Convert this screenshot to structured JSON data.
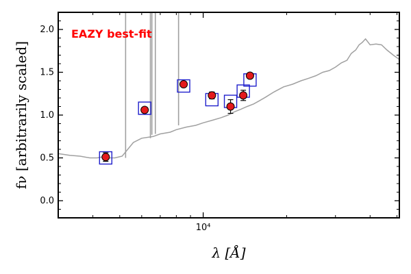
{
  "chart_data": {
    "type": "scatter",
    "title": "",
    "xlabel": "λ [Å]",
    "ylabel": "fν [arbitrarily scaled]",
    "xscale": "log",
    "xlim": [
      3000,
      51000
    ],
    "ylim": [
      -0.2,
      2.2
    ],
    "yticks": [
      0.0,
      0.5,
      1.0,
      1.5,
      2.0
    ],
    "ytick_labels": [
      "0.0",
      "0.5",
      "1.0",
      "1.5",
      "2.0"
    ],
    "xticks": [
      10000
    ],
    "xtick_labels": [
      "10⁴"
    ],
    "grid": false,
    "annotation": {
      "text": "EAZY best-fit",
      "color": "#ff0000"
    },
    "colors": {
      "template": "#a0a0a0",
      "model_box": "#1f1fcc",
      "observed_point": "#e31a1c",
      "errorbar": "#000000"
    },
    "series": [
      {
        "role": "template",
        "x": [
          3000,
          3300,
          3600,
          3900,
          4150,
          4300,
          4600,
          4800,
          5100,
          5600,
          6000,
          6600,
          7000,
          7600,
          8000,
          8700,
          9400,
          10000,
          10800,
          11600,
          12300,
          13000,
          13700,
          14400,
          15200,
          16000,
          16800,
          18000,
          19500,
          21000,
          22500,
          24000,
          25500,
          27000,
          28500,
          30000,
          31500,
          33000,
          34200,
          35500,
          36500,
          37500,
          38500,
          40000,
          42000,
          44000,
          46000,
          48500,
          51000
        ],
        "y": [
          0.55,
          0.53,
          0.52,
          0.5,
          0.5,
          0.51,
          0.5,
          0.5,
          0.52,
          0.68,
          0.73,
          0.75,
          0.78,
          0.8,
          0.83,
          0.86,
          0.88,
          0.91,
          0.94,
          0.97,
          1.0,
          1.04,
          1.07,
          1.1,
          1.13,
          1.17,
          1.21,
          1.27,
          1.33,
          1.36,
          1.4,
          1.43,
          1.46,
          1.5,
          1.52,
          1.56,
          1.61,
          1.64,
          1.72,
          1.76,
          1.82,
          1.85,
          1.89,
          1.82,
          1.83,
          1.82,
          1.76,
          1.7,
          1.65
        ]
      },
      {
        "role": "template-lines",
        "x": [
          5250,
          6450,
          6530,
          6720,
          8150
        ],
        "y": [
          2.2,
          2.2,
          2.2,
          2.2,
          2.2
        ],
        "base": [
          0.5,
          0.73,
          0.77,
          0.78,
          0.88
        ]
      },
      {
        "role": "model",
        "x": [
          4450,
          6150,
          8500,
          10750,
          12550,
          13950,
          14750
        ],
        "y": [
          0.5,
          1.08,
          1.34,
          1.18,
          1.16,
          1.28,
          1.41
        ]
      },
      {
        "role": "observed",
        "x": [
          4450,
          6150,
          8500,
          10750,
          12550,
          13950,
          14750
        ],
        "y": [
          0.51,
          1.06,
          1.36,
          1.23,
          1.1,
          1.23,
          1.46
        ],
        "yerr": [
          0.05,
          0.03,
          0.03,
          0.04,
          0.08,
          0.06,
          0.03
        ]
      }
    ]
  }
}
